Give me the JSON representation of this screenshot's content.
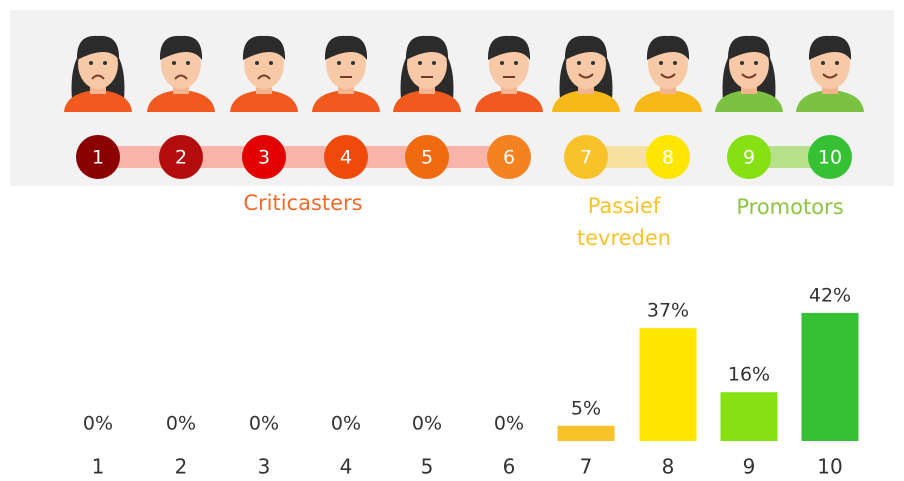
{
  "chart_data": {
    "type": "bar",
    "categories": [
      "1",
      "2",
      "3",
      "4",
      "5",
      "6",
      "7",
      "8",
      "9",
      "10"
    ],
    "values": [
      0,
      0,
      0,
      0,
      0,
      0,
      5,
      37,
      16,
      42
    ],
    "value_labels": [
      "0%",
      "0%",
      "0%",
      "0%",
      "0%",
      "0%",
      "5%",
      "37%",
      "16%",
      "42%"
    ],
    "colors": [
      "#8b0000",
      "#b50d0d",
      "#e30000",
      "#f04a0a",
      "#f06a10",
      "#f58220",
      "#f7c22a",
      "#ffe600",
      "#86e012",
      "#36c134"
    ],
    "groups": [
      {
        "name": "Criticasters",
        "color": "#f26a2a"
      },
      {
        "name": "Passief tevreden",
        "color": "#f7c22a"
      },
      {
        "name": "Promotors",
        "color": "#8cc63f"
      }
    ]
  }
}
